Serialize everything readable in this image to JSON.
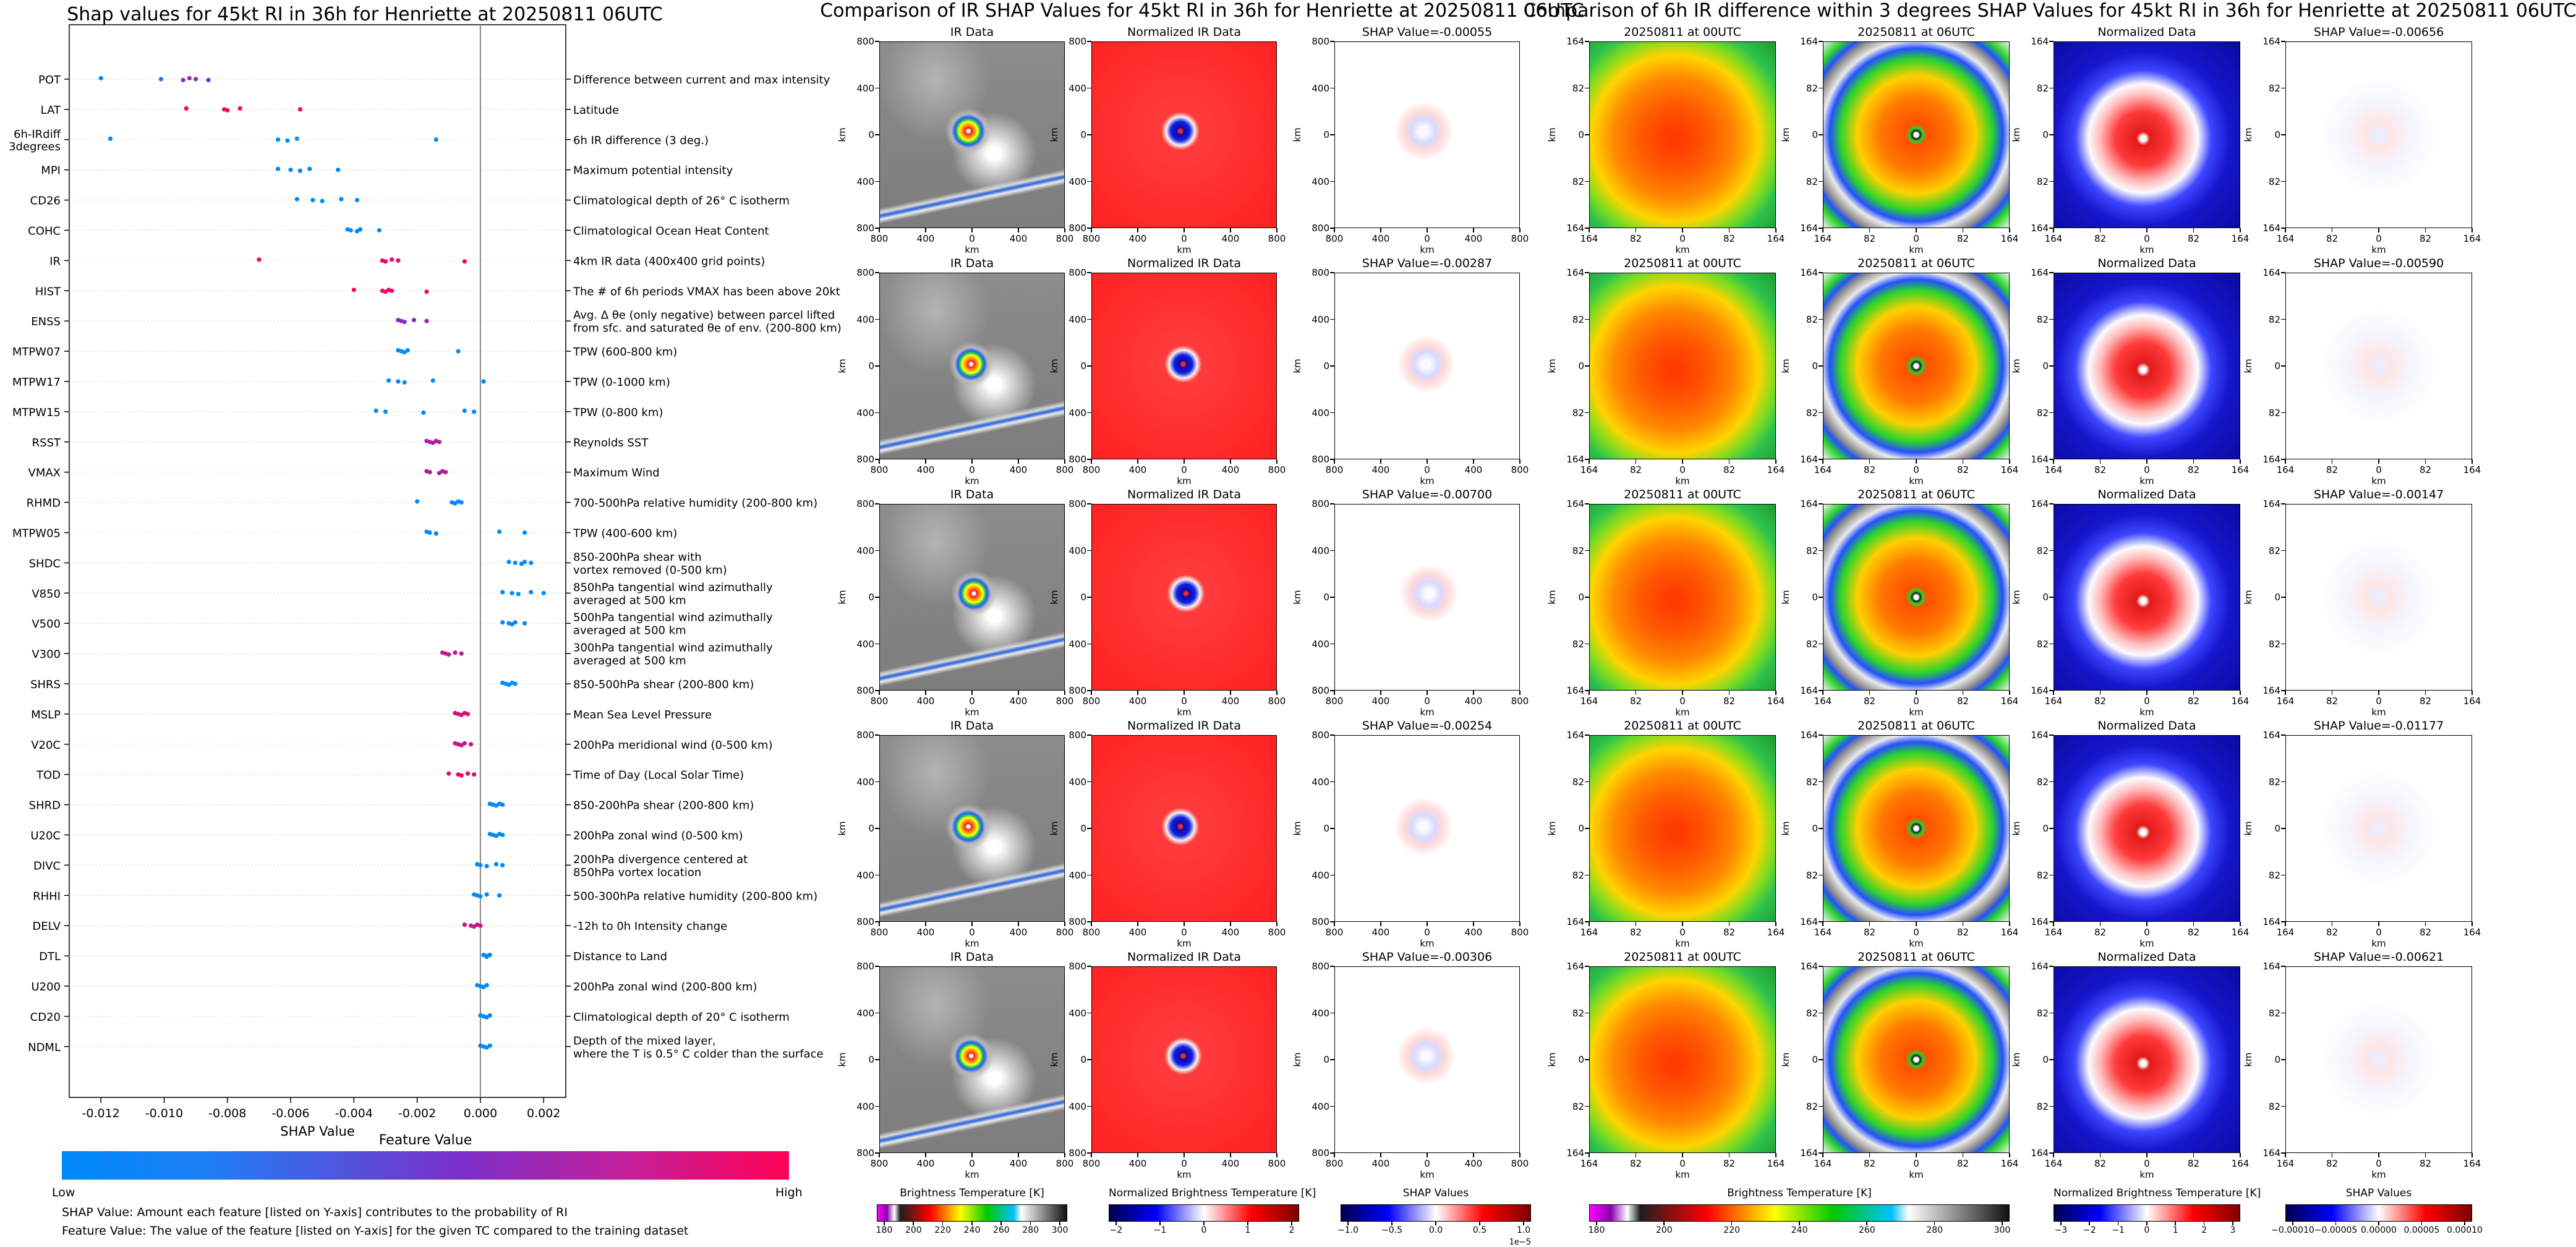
{
  "shap_summary": {
    "title": "Shap values for 45kt RI in 36h for Henriette at 20250811 06UTC",
    "xlabel": "SHAP Value",
    "colorbar_title": "Feature Value",
    "colorbar_low": "Low",
    "colorbar_high": "High",
    "note_shap": "SHAP Value: Amount each feature [listed on Y-axis] contributes to the probability of RI",
    "note_feature": "Feature Value: The value of the feature [listed on Y-axis] for the given TC compared to the training dataset",
    "colors": {
      "low": "#008afb",
      "mid": "#7c2fc9",
      "high": "#ff0154"
    }
  },
  "chart_data": {
    "type": "scatter",
    "title": "Shap values for 45kt RI in 36h for Henriette at 20250811 06UTC",
    "xlabel": "SHAP Value",
    "xlim": [
      -0.013,
      0.0027
    ],
    "xticks": [
      -0.012,
      -0.01,
      -0.008,
      -0.006,
      -0.004,
      -0.002,
      0.0,
      0.002
    ],
    "xtick_labels": [
      "-0.012",
      "-0.010",
      "-0.008",
      "-0.006",
      "-0.004",
      "-0.002",
      "0.000",
      "0.002"
    ],
    "features": [
      {
        "name": "POT",
        "desc": [
          "Difference between current and max intensity"
        ],
        "points": [
          [
            -0.012,
            0.0
          ],
          [
            -0.0101,
            0.15
          ],
          [
            -0.0094,
            0.5
          ],
          [
            -0.0092,
            0.6
          ],
          [
            -0.009,
            0.6
          ],
          [
            -0.0086,
            0.5
          ]
        ]
      },
      {
        "name": "LAT",
        "desc": [
          "Latitude"
        ],
        "points": [
          [
            -0.0093,
            1.0
          ],
          [
            -0.0081,
            0.9
          ],
          [
            -0.008,
            0.9
          ],
          [
            -0.0076,
            1.0
          ],
          [
            -0.0057,
            1.0
          ]
        ]
      },
      {
        "name": "6h-IRdiff\n3degrees",
        "desc": [
          "6h IR difference (3 deg.)"
        ],
        "points": [
          [
            -0.0117,
            0.0
          ],
          [
            -0.0064,
            0.0
          ],
          [
            -0.0061,
            0.0
          ],
          [
            -0.0058,
            0.0
          ],
          [
            -0.0014,
            0.0
          ]
        ]
      },
      {
        "name": "MPI",
        "desc": [
          "Maximum potential intensity"
        ],
        "points": [
          [
            -0.0064,
            0.0
          ],
          [
            -0.006,
            0.0
          ],
          [
            -0.0057,
            0.05
          ],
          [
            -0.0054,
            0.05
          ],
          [
            -0.0045,
            0.0
          ]
        ]
      },
      {
        "name": "CD26",
        "desc": [
          "Climatological depth of 26° C isotherm"
        ],
        "points": [
          [
            -0.0058,
            0.0
          ],
          [
            -0.0053,
            0.0
          ],
          [
            -0.005,
            0.0
          ],
          [
            -0.0044,
            0.0
          ],
          [
            -0.0039,
            0.0
          ]
        ]
      },
      {
        "name": "COHC",
        "desc": [
          "Climatological Ocean Heat Content"
        ],
        "points": [
          [
            -0.0042,
            0.0
          ],
          [
            -0.0041,
            0.0
          ],
          [
            -0.0039,
            0.0
          ],
          [
            -0.0038,
            0.0
          ],
          [
            -0.0032,
            0.0
          ]
        ]
      },
      {
        "name": "IR",
        "desc": [
          "4km IR data (400x400 grid points)"
        ],
        "points": [
          [
            -0.007,
            1.0
          ],
          [
            -0.0031,
            0.9
          ],
          [
            -0.003,
            1.0
          ],
          [
            -0.0028,
            0.9
          ],
          [
            -0.0026,
            1.0
          ],
          [
            -0.0005,
            1.0
          ]
        ]
      },
      {
        "name": "HIST",
        "desc": [
          "The # of 6h periods VMAX has been above 20kt"
        ],
        "points": [
          [
            -0.004,
            1.0
          ],
          [
            -0.0031,
            0.9
          ],
          [
            -0.003,
            1.0
          ],
          [
            -0.0029,
            0.9
          ],
          [
            -0.0028,
            1.0
          ],
          [
            -0.0017,
            1.0
          ]
        ]
      },
      {
        "name": "ENSS",
        "desc": [
          "Avg. Δ θe (only negative) between parcel lifted",
          "from sfc. and saturated θe of env. (200-800 km)"
        ],
        "points": [
          [
            -0.0026,
            0.55
          ],
          [
            -0.0025,
            0.6
          ],
          [
            -0.0024,
            0.5
          ],
          [
            -0.0021,
            0.6
          ],
          [
            -0.0017,
            0.6
          ]
        ]
      },
      {
        "name": "MTPW07",
        "desc": [
          "TPW (600-800 km)"
        ],
        "points": [
          [
            -0.0026,
            0.0
          ],
          [
            -0.0025,
            0.0
          ],
          [
            -0.0024,
            0.0
          ],
          [
            -0.0023,
            0.0
          ],
          [
            -0.0007,
            0.0
          ]
        ]
      },
      {
        "name": "MTPW17",
        "desc": [
          "TPW (0-1000 km)"
        ],
        "points": [
          [
            -0.0029,
            0.0
          ],
          [
            -0.0026,
            0.05
          ],
          [
            -0.0024,
            0.0
          ],
          [
            -0.0015,
            0.0
          ],
          [
            0.0001,
            0.0
          ]
        ]
      },
      {
        "name": "MTPW15",
        "desc": [
          "TPW (0-800 km)"
        ],
        "points": [
          [
            -0.0033,
            0.0
          ],
          [
            -0.003,
            0.0
          ],
          [
            -0.0018,
            0.0
          ],
          [
            -0.0005,
            0.0
          ],
          [
            -0.0002,
            0.0
          ]
        ]
      },
      {
        "name": "RSST",
        "desc": [
          "Reynolds SST"
        ],
        "points": [
          [
            -0.0017,
            0.7
          ],
          [
            -0.0016,
            0.7
          ],
          [
            -0.0015,
            0.7
          ],
          [
            -0.0014,
            0.7
          ],
          [
            -0.0013,
            0.7
          ]
        ]
      },
      {
        "name": "VMAX",
        "desc": [
          "Maximum Wind"
        ],
        "points": [
          [
            -0.0017,
            0.7
          ],
          [
            -0.0016,
            0.7
          ],
          [
            -0.0013,
            0.65
          ],
          [
            -0.0012,
            0.7
          ],
          [
            -0.0011,
            0.7
          ]
        ]
      },
      {
        "name": "RHMD",
        "desc": [
          "700-500hPa relative humidity (200-800 km)"
        ],
        "points": [
          [
            -0.002,
            0.0
          ],
          [
            -0.0009,
            0.0
          ],
          [
            -0.0008,
            0.05
          ],
          [
            -0.0007,
            0.0
          ],
          [
            -0.0006,
            0.0
          ]
        ]
      },
      {
        "name": "MTPW05",
        "desc": [
          "TPW (400-600 km)"
        ],
        "points": [
          [
            -0.0017,
            0.0
          ],
          [
            -0.0016,
            0.0
          ],
          [
            -0.0014,
            0.05
          ],
          [
            0.0006,
            0.0
          ],
          [
            0.0014,
            0.0
          ]
        ]
      },
      {
        "name": "SHDC",
        "desc": [
          "850-200hPa shear with",
          "vortex removed (0-500 km)"
        ],
        "points": [
          [
            0.0009,
            0.0
          ],
          [
            0.0011,
            0.0
          ],
          [
            0.0013,
            0.0
          ],
          [
            0.0014,
            0.0
          ],
          [
            0.0016,
            0.0
          ]
        ]
      },
      {
        "name": "V850",
        "desc": [
          "850hPa tangential wind azimuthally",
          "averaged at 500 km"
        ],
        "points": [
          [
            0.0007,
            0.0
          ],
          [
            0.001,
            0.0
          ],
          [
            0.0012,
            0.0
          ],
          [
            0.0016,
            0.0
          ],
          [
            0.002,
            0.0
          ]
        ]
      },
      {
        "name": "V500",
        "desc": [
          "500hPa tangential wind azimuthally",
          "averaged at 500 km"
        ],
        "points": [
          [
            0.0007,
            0.0
          ],
          [
            0.0009,
            0.0
          ],
          [
            0.001,
            0.0
          ],
          [
            0.0011,
            0.0
          ],
          [
            0.0014,
            0.0
          ]
        ]
      },
      {
        "name": "V300",
        "desc": [
          "300hPa tangential wind azimuthally",
          "averaged at 500 km"
        ],
        "points": [
          [
            -0.0012,
            0.75
          ],
          [
            -0.0011,
            0.8
          ],
          [
            -0.001,
            0.7
          ],
          [
            -0.0008,
            0.8
          ],
          [
            -0.0006,
            0.75
          ]
        ]
      },
      {
        "name": "SHRS",
        "desc": [
          "850-500hPa shear (200-800 km)"
        ],
        "points": [
          [
            0.0007,
            0.0
          ],
          [
            0.0008,
            0.0
          ],
          [
            0.0009,
            0.0
          ],
          [
            0.001,
            0.0
          ],
          [
            0.0011,
            0.0
          ]
        ]
      },
      {
        "name": "MSLP",
        "desc": [
          "Mean Sea Level Pressure"
        ],
        "points": [
          [
            -0.0008,
            0.85
          ],
          [
            -0.0007,
            0.85
          ],
          [
            -0.0006,
            0.8
          ],
          [
            -0.0005,
            0.85
          ],
          [
            -0.0004,
            0.85
          ]
        ]
      },
      {
        "name": "V20C",
        "desc": [
          "200hPa meridional wind (0-500 km)"
        ],
        "points": [
          [
            -0.0008,
            0.75
          ],
          [
            -0.0007,
            0.8
          ],
          [
            -0.0006,
            0.8
          ],
          [
            -0.0005,
            0.8
          ],
          [
            -0.0003,
            0.85
          ]
        ]
      },
      {
        "name": "TOD",
        "desc": [
          "Time of Day (Local Solar Time)"
        ],
        "points": [
          [
            -0.001,
            0.9
          ],
          [
            -0.0007,
            0.9
          ],
          [
            -0.0006,
            0.95
          ],
          [
            -0.0004,
            0.9
          ],
          [
            -0.0002,
            0.9
          ]
        ]
      },
      {
        "name": "SHRD",
        "desc": [
          "850-200hPa shear (200-800 km)"
        ],
        "points": [
          [
            0.0003,
            0.0
          ],
          [
            0.0004,
            0.0
          ],
          [
            0.0005,
            0.0
          ],
          [
            0.0006,
            0.0
          ],
          [
            0.0007,
            0.0
          ]
        ]
      },
      {
        "name": "U20C",
        "desc": [
          "200hPa zonal wind (0-500 km)"
        ],
        "points": [
          [
            0.0003,
            0.0
          ],
          [
            0.0004,
            0.0
          ],
          [
            0.0005,
            0.0
          ],
          [
            0.0006,
            0.0
          ],
          [
            0.0007,
            0.0
          ]
        ]
      },
      {
        "name": "DIVC",
        "desc": [
          "200hPa divergence centered at",
          "850hPa vortex location"
        ],
        "points": [
          [
            -0.0001,
            0.0
          ],
          [
            0.0,
            0.0
          ],
          [
            0.0002,
            0.0
          ],
          [
            0.0005,
            0.0
          ],
          [
            0.0007,
            0.0
          ]
        ]
      },
      {
        "name": "RHHI",
        "desc": [
          "500-300hPa relative humidity (200-800 km)"
        ],
        "points": [
          [
            -0.0002,
            0.0
          ],
          [
            -0.0001,
            0.0
          ],
          [
            0.0,
            0.0
          ],
          [
            0.0002,
            0.0
          ],
          [
            0.0006,
            0.0
          ]
        ]
      },
      {
        "name": "DELV",
        "desc": [
          "-12h to 0h Intensity change"
        ],
        "points": [
          [
            -0.0005,
            0.9
          ],
          [
            -0.0003,
            0.75
          ],
          [
            -0.0002,
            0.8
          ],
          [
            -0.0001,
            0.8
          ],
          [
            0.0,
            0.8
          ]
        ]
      },
      {
        "name": "DTL",
        "desc": [
          "Distance to Land"
        ],
        "points": [
          [
            0.0001,
            0.0
          ],
          [
            0.0002,
            0.0
          ],
          [
            0.0002,
            0.05
          ],
          [
            0.0003,
            0.0
          ]
        ]
      },
      {
        "name": "U200",
        "desc": [
          "200hPa zonal wind (200-800 km)"
        ],
        "points": [
          [
            -0.0001,
            0.0
          ],
          [
            0.0,
            0.0
          ],
          [
            0.0001,
            0.0
          ],
          [
            0.0002,
            0.0
          ]
        ]
      },
      {
        "name": "CD20",
        "desc": [
          "Climatological depth of 20° C isotherm"
        ],
        "points": [
          [
            0.0,
            0.0
          ],
          [
            0.0001,
            0.0
          ],
          [
            0.0002,
            0.05
          ],
          [
            0.0003,
            0.0
          ]
        ]
      },
      {
        "name": "NDML",
        "desc": [
          "Depth of the mixed layer,",
          "where the T is 0.5° C colder than the surface"
        ],
        "points": [
          [
            0.0,
            0.0
          ],
          [
            0.0001,
            0.0
          ],
          [
            0.0002,
            0.0
          ],
          [
            0.0003,
            0.0
          ]
        ]
      }
    ]
  },
  "ir_section": {
    "title": "Comparison of IR SHAP Values for 45kt RI in 36h for Henriette at 20250811 06UTC",
    "col_titles": [
      "IR Data",
      "Normalized IR Data"
    ],
    "shap_titles": [
      "SHAP Value=-0.00055",
      "SHAP Value=-0.00287",
      "SHAP Value=-0.00700",
      "SHAP Value=-0.00254",
      "SHAP Value=-0.00306"
    ],
    "axis_unit": "km",
    "x_ticks": [
      "800",
      "400",
      "0",
      "400",
      "800"
    ],
    "y_ticks": [
      "800",
      "400",
      "0",
      "400",
      "800"
    ],
    "colorbars": [
      {
        "label": "Brightness Temperature [K]",
        "ticks": [
          "180",
          "200",
          "220",
          "240",
          "260",
          "280",
          "300"
        ],
        "exponent": ""
      },
      {
        "label": "Normalized Brightness Temperature [K]",
        "ticks": [
          "−2",
          "−1",
          "0",
          "1",
          "2"
        ],
        "exponent": ""
      },
      {
        "label": "SHAP Values",
        "ticks": [
          "−1.0",
          "−0.5",
          "0.0",
          "0.5",
          "1.0"
        ],
        "exponent": "1e−5"
      }
    ]
  },
  "diff_section": {
    "title": "Comparison of 6h IR difference within 3 degrees SHAP Values for 45kt RI in 36h for Henriette at 20250811 06UTC",
    "col_titles": [
      "20250811 at 00UTC",
      "20250811 at 06UTC",
      "Normalized Data"
    ],
    "shap_titles": [
      "SHAP Value=-0.00656",
      "SHAP Value=-0.00590",
      "SHAP Value=-0.00147",
      "SHAP Value=-0.01177",
      "SHAP Value=-0.00621"
    ],
    "axis_unit": "km",
    "x_ticks": [
      "164",
      "82",
      "0",
      "82",
      "164"
    ],
    "y_ticks": [
      "164",
      "82",
      "0",
      "82",
      "164"
    ],
    "colorbars": [
      {
        "label": "Brightness Temperature [K]",
        "ticks": [
          "180",
          "200",
          "220",
          "240",
          "260",
          "280",
          "300"
        ],
        "exponent": ""
      },
      {
        "label": "Normalized Brightness Temperature [K]",
        "ticks": [
          "−3",
          "−2",
          "−1",
          "0",
          "1",
          "2",
          "3"
        ],
        "exponent": ""
      },
      {
        "label": "SHAP Values",
        "ticks": [
          "−0.00010",
          "−0.00005",
          "0.00000",
          "0.00005",
          "0.00010"
        ],
        "exponent": ""
      }
    ]
  }
}
